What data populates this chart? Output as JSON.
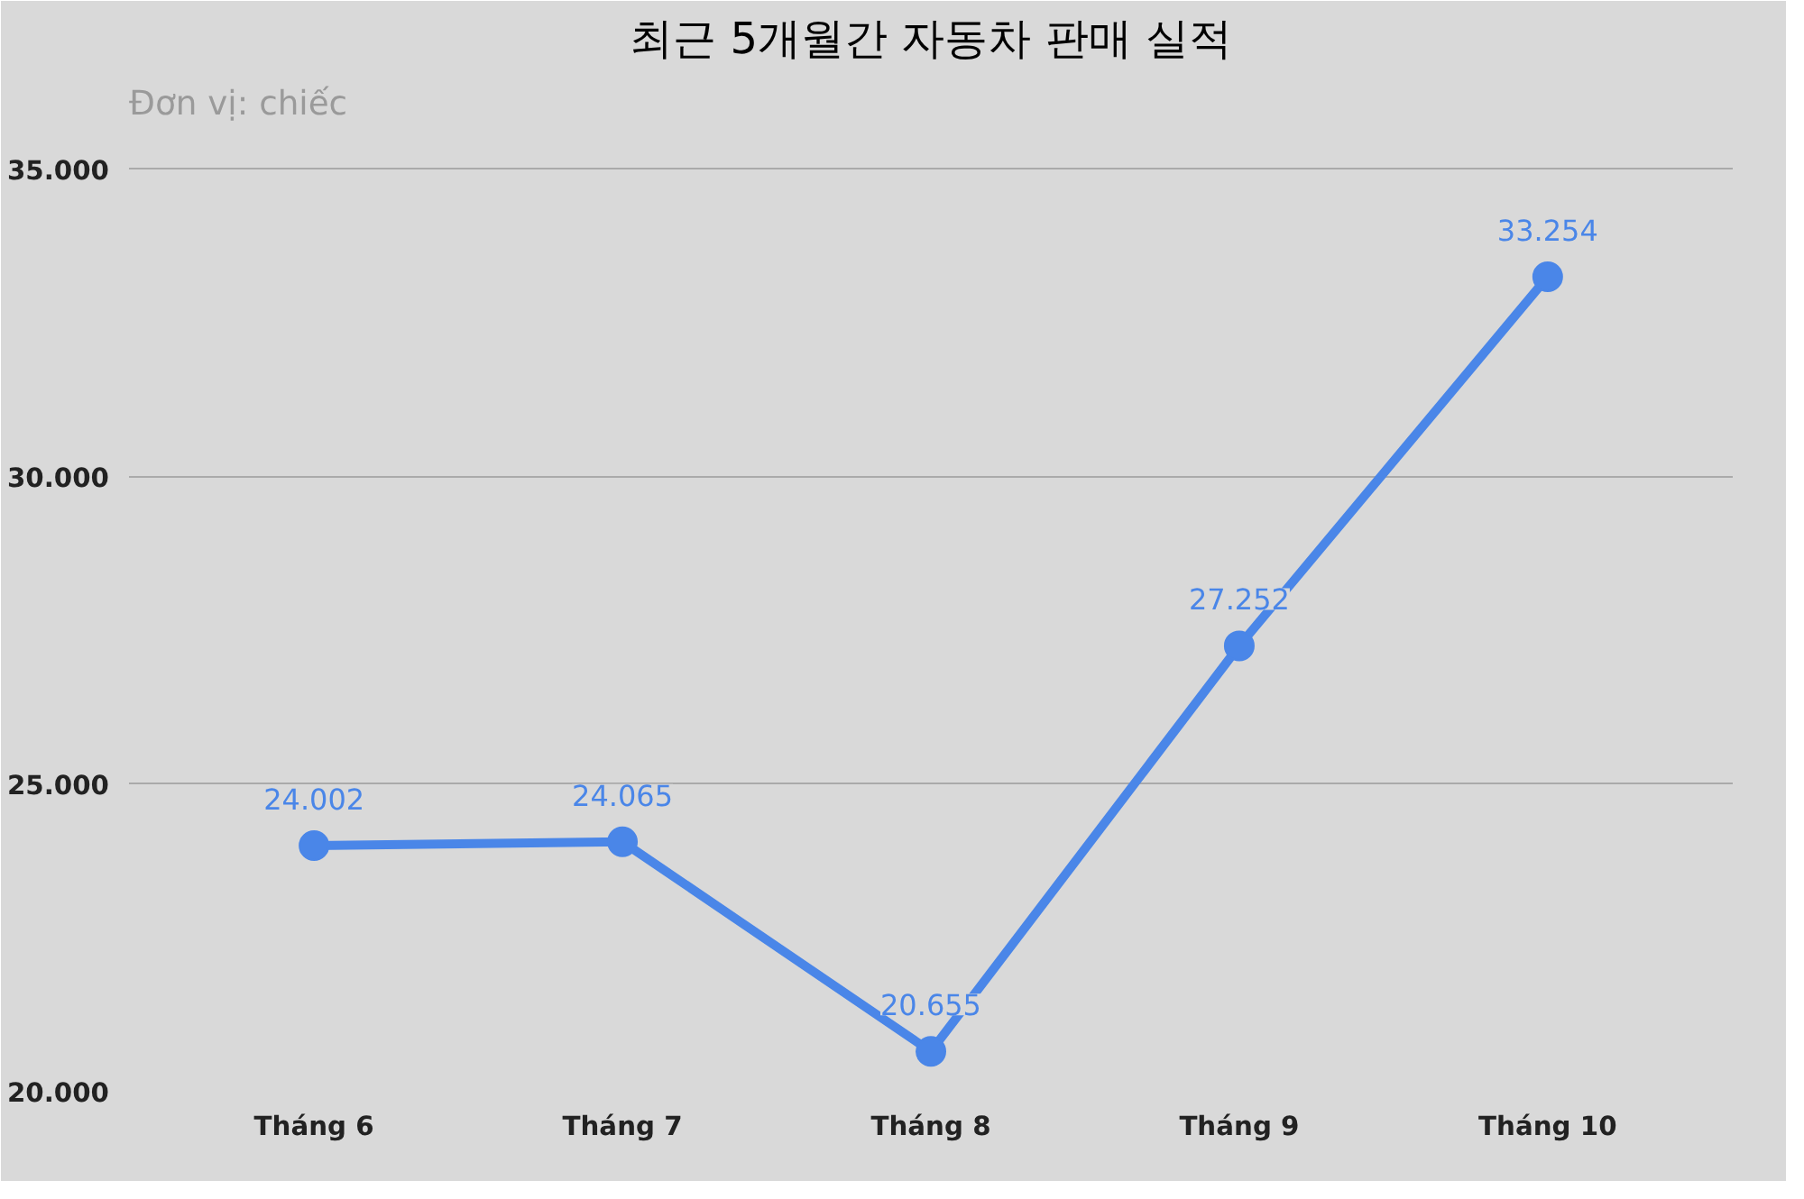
{
  "chart_data": {
    "type": "line",
    "title": "최근 5개월간 자동차 판매 실적",
    "subtitle": "Đơn vị: chiếc",
    "categories": [
      "Tháng 6",
      "Tháng 7",
      "Tháng 8",
      "Tháng 9",
      "Tháng 10"
    ],
    "series": [
      {
        "color": "#4a86e8",
        "values": [
          24002,
          24065,
          20655,
          27252,
          33254
        ],
        "value_labels": [
          "24.002",
          "24.065",
          "20.655",
          "27.252",
          "33.254"
        ]
      }
    ],
    "ylim": [
      20000,
      35600
    ],
    "yticks": [
      {
        "value": 20000,
        "label": "20.000"
      },
      {
        "value": 25000,
        "label": "25.000"
      },
      {
        "value": 30000,
        "label": "30.000"
      },
      {
        "value": 35000,
        "label": "35.000"
      }
    ],
    "grid": "y",
    "marker": "circle",
    "line_style": "solid"
  }
}
